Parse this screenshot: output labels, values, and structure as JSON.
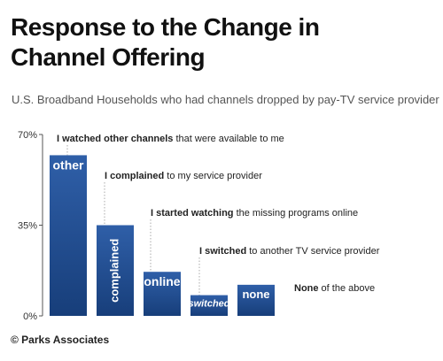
{
  "title_line1": "Response to the Change in",
  "title_line2": "Channel Offering",
  "subtitle": "U.S. Broadband Households who had channels dropped by pay-TV service provider",
  "copyright": "© Parks Associates",
  "colors": {
    "bar_top": "#2f5fa8",
    "bar_bottom": "#173e7a",
    "axis": "#555555",
    "leader": "#aaaaaa"
  },
  "chart_data": {
    "type": "bar",
    "title": "Response to the Change in Channel Offering",
    "subtitle": "U.S. Broadband Households who had channels dropped by pay-TV service provider",
    "categories": [
      "other",
      "complained",
      "online",
      "switched",
      "none"
    ],
    "values": [
      62,
      35,
      17,
      8,
      12
    ],
    "ylim": [
      0,
      70
    ],
    "yticks": [
      "0%",
      "35%",
      "70%"
    ],
    "yticks_values": [
      0,
      35,
      70
    ],
    "labels": [
      {
        "bold": "I watched other channels",
        "rest": " that were available to me"
      },
      {
        "bold": "I complained",
        "rest": " to my service provider"
      },
      {
        "bold": "I started watching",
        "rest": " the missing programs online"
      },
      {
        "bold": "I switched",
        "rest": " to another TV service provider"
      },
      {
        "bold": "None",
        "rest": " of the above"
      }
    ],
    "grid": false,
    "legend": "none"
  }
}
